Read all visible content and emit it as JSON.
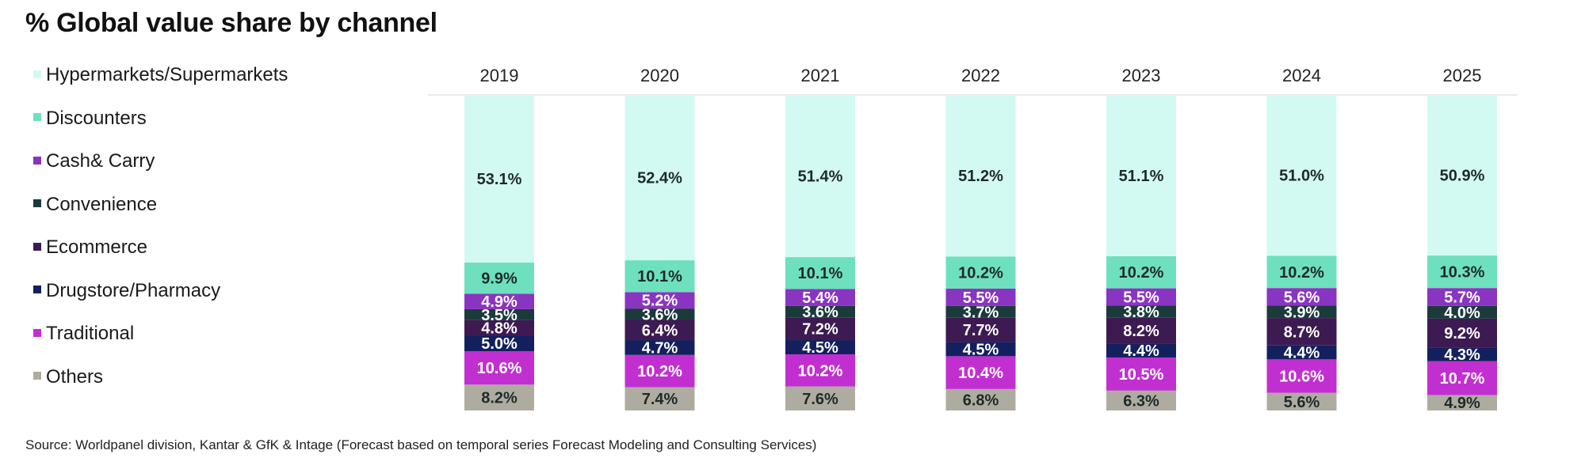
{
  "title": "% Global value share by channel",
  "source": "Source: Worldpanel division, Kantar & GfK & Intage (Forecast based on temporal series Forecast Modeling and Consulting Services)",
  "chart_data": {
    "type": "bar",
    "stacked": true,
    "title": "% Global value share by channel",
    "categories": [
      "2019",
      "2020",
      "2021",
      "2022",
      "2023",
      "2024",
      "2025"
    ],
    "legend_position": "left",
    "series": [
      {
        "name": "Others",
        "color": "#aeaca0",
        "values": [
          8.2,
          7.4,
          7.6,
          6.8,
          6.3,
          5.6,
          4.9
        ],
        "labels": [
          "8.2%",
          "7.4%",
          "7.6%",
          "6.8%",
          "6.3%",
          "5.6%",
          "4.9%"
        ]
      },
      {
        "name": "Traditional",
        "color": "#c22fd1",
        "values": [
          10.6,
          10.2,
          10.2,
          10.4,
          10.5,
          10.6,
          10.7
        ],
        "labels": [
          "10.6%",
          "10.2%",
          "10.2%",
          "10.4%",
          "10.5%",
          "10.6%",
          "10.7%"
        ]
      },
      {
        "name": "Drugstore/Pharmacy",
        "color": "#14205e",
        "values": [
          5.0,
          4.7,
          4.5,
          4.5,
          4.4,
          4.4,
          4.3
        ],
        "labels": [
          "5.0%",
          "4.7%",
          "4.5%",
          "4.5%",
          "4.4%",
          "4.4%",
          "4.3%"
        ]
      },
      {
        "name": "Ecommerce",
        "color": "#3d1a52",
        "values": [
          4.8,
          6.4,
          7.2,
          7.7,
          8.2,
          8.7,
          9.2
        ],
        "labels": [
          "4.8%",
          "6.4%",
          "7.2%",
          "7.7%",
          "8.2%",
          "8.7%",
          "9.2%"
        ]
      },
      {
        "name": "Convenience",
        "color": "#1b3a3c",
        "values": [
          3.5,
          3.6,
          3.6,
          3.7,
          3.8,
          3.9,
          4.0
        ],
        "labels": [
          "3.5%",
          "3.6%",
          "3.6%",
          "3.7%",
          "3.8%",
          "3.9%",
          "4.0%"
        ]
      },
      {
        "name": "Cash& Carry",
        "color": "#8a34c2",
        "values": [
          4.9,
          5.2,
          5.4,
          5.5,
          5.5,
          5.6,
          5.7
        ],
        "labels": [
          "4.9%",
          "5.2%",
          "5.4%",
          "5.5%",
          "5.5%",
          "5.6%",
          "5.7%"
        ]
      },
      {
        "name": "Discounters",
        "color": "#6ee0bd",
        "values": [
          9.9,
          10.1,
          10.1,
          10.2,
          10.2,
          10.2,
          10.3
        ],
        "labels": [
          "9.9%",
          "10.1%",
          "10.1%",
          "10.2%",
          "10.2%",
          "10.2%",
          "10.3%"
        ]
      },
      {
        "name": "Hypermarkets/Supermarkets",
        "color": "#d3faf2",
        "values": [
          53.1,
          52.4,
          51.4,
          51.2,
          51.1,
          51.0,
          50.9
        ],
        "labels": [
          "53.1%",
          "52.4%",
          "51.4%",
          "51.2%",
          "51.1%",
          "51.0%",
          "50.9%"
        ]
      }
    ],
    "legend_order": [
      "Hypermarkets/Supermarkets",
      "Discounters",
      "Cash& Carry",
      "Convenience",
      "Ecommerce",
      "Drugstore/Pharmacy",
      "Traditional",
      "Others"
    ],
    "ylim": [
      0,
      100
    ],
    "grid": false
  }
}
